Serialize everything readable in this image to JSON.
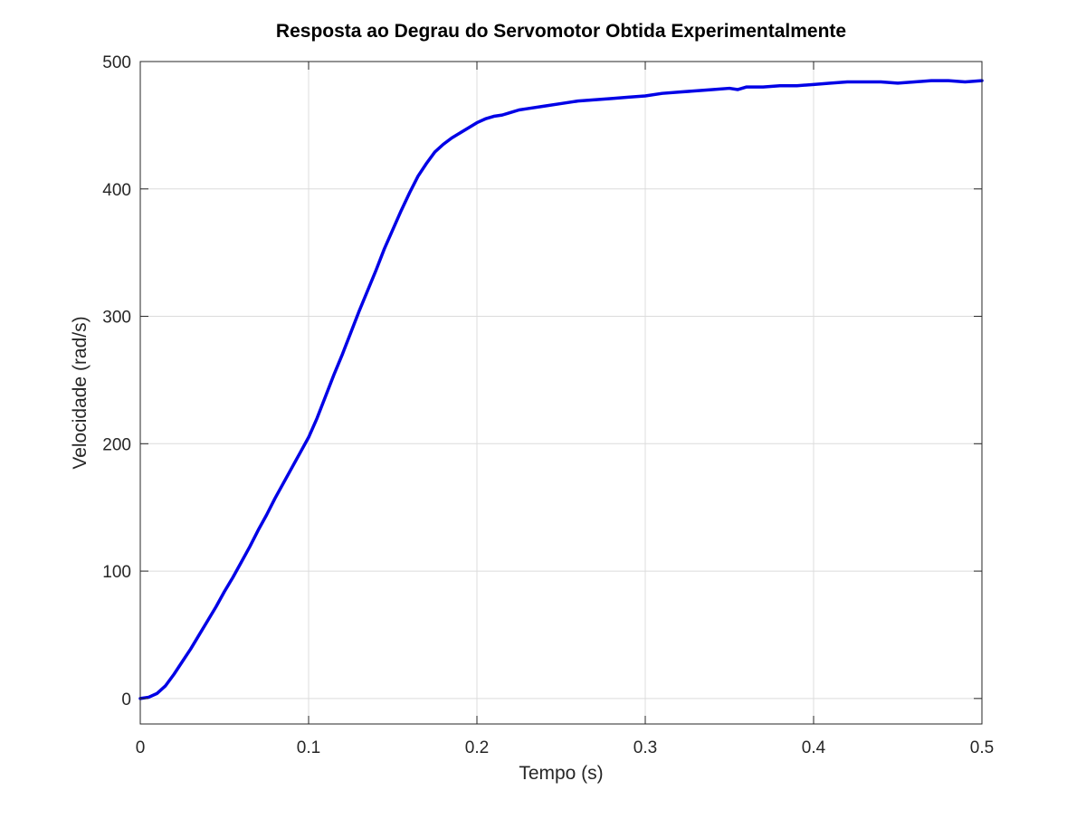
{
  "chart_data": {
    "type": "line",
    "title": "Resposta ao Degrau do Servomotor Obtida Experimentalmente",
    "xlabel": "Tempo (s)",
    "ylabel": "Velocidade (rad/s)",
    "xlim": [
      0,
      0.5
    ],
    "ylim": [
      -20,
      500
    ],
    "xticks": [
      0,
      0.1,
      0.2,
      0.3,
      0.4,
      0.5
    ],
    "xtick_labels": [
      "0",
      "0.1",
      "0.2",
      "0.3",
      "0.4",
      "0.5"
    ],
    "yticks": [
      0,
      100,
      200,
      300,
      400,
      500
    ],
    "ytick_labels": [
      "0",
      "100",
      "200",
      "300",
      "400",
      "500"
    ],
    "grid": true,
    "legend": "none",
    "series": [
      {
        "color": "#0000e6",
        "x": [
          0,
          0.005,
          0.01,
          0.015,
          0.02,
          0.025,
          0.03,
          0.035,
          0.04,
          0.045,
          0.05,
          0.055,
          0.06,
          0.065,
          0.07,
          0.075,
          0.08,
          0.085,
          0.09,
          0.095,
          0.1,
          0.105,
          0.11,
          0.115,
          0.12,
          0.125,
          0.13,
          0.135,
          0.14,
          0.145,
          0.15,
          0.155,
          0.16,
          0.165,
          0.17,
          0.175,
          0.18,
          0.185,
          0.19,
          0.195,
          0.2,
          0.205,
          0.21,
          0.215,
          0.22,
          0.225,
          0.23,
          0.24,
          0.25,
          0.26,
          0.27,
          0.28,
          0.29,
          0.3,
          0.31,
          0.32,
          0.33,
          0.34,
          0.35,
          0.355,
          0.36,
          0.37,
          0.38,
          0.39,
          0.4,
          0.41,
          0.42,
          0.43,
          0.44,
          0.45,
          0.46,
          0.47,
          0.48,
          0.49,
          0.5
        ],
        "y": [
          0,
          1,
          4,
          10,
          19,
          29,
          39,
          50,
          61,
          72,
          84,
          95,
          107,
          119,
          132,
          144,
          157,
          169,
          181,
          193,
          205,
          220,
          237,
          254,
          270,
          287,
          304,
          320,
          336,
          353,
          368,
          383,
          397,
          410,
          420,
          429,
          435,
          440,
          444,
          448,
          452,
          455,
          457,
          458,
          460,
          462,
          463,
          465,
          467,
          469,
          470,
          471,
          472,
          473,
          475,
          476,
          477,
          478,
          479,
          478,
          480,
          480,
          481,
          481,
          482,
          483,
          484,
          484,
          484,
          483,
          484,
          485,
          485,
          484,
          485
        ]
      }
    ]
  }
}
